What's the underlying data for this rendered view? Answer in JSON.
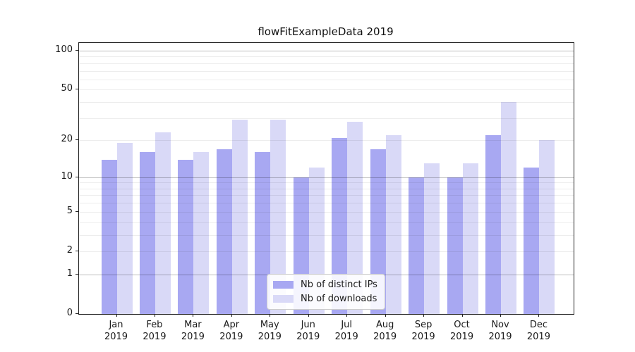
{
  "title": "flowFitExampleData 2019",
  "chart_data": {
    "type": "bar",
    "title": "flowFitExampleData 2019",
    "categories": [
      "Jan",
      "Feb",
      "Mar",
      "Apr",
      "May",
      "Jun",
      "Jul",
      "Aug",
      "Sep",
      "Oct",
      "Nov",
      "Dec"
    ],
    "category_year": "2019",
    "series": [
      {
        "name": "Nb of distinct IPs",
        "color": "#a8a8f2",
        "values": [
          14,
          16,
          14,
          17,
          16,
          10,
          21,
          17,
          10,
          10,
          22,
          12
        ]
      },
      {
        "name": "Nb of downloads",
        "color": "#d9d9f7",
        "values": [
          19,
          23,
          16,
          29,
          29,
          12,
          28,
          22,
          13,
          13,
          40,
          20
        ]
      }
    ],
    "yscale": "log1p",
    "ylim": [
      0,
      114.7
    ],
    "yticks": [
      0,
      1,
      2,
      5,
      10,
      20,
      50,
      100
    ],
    "grid_major": [
      1,
      10,
      100
    ],
    "grid_minor": [
      2,
      3,
      4,
      5,
      6,
      7,
      8,
      9,
      20,
      30,
      40,
      50,
      60,
      70,
      80,
      90
    ],
    "grid_on": true,
    "legend_position": "lower center inside plot",
    "xlabel": "",
    "ylabel": ""
  }
}
